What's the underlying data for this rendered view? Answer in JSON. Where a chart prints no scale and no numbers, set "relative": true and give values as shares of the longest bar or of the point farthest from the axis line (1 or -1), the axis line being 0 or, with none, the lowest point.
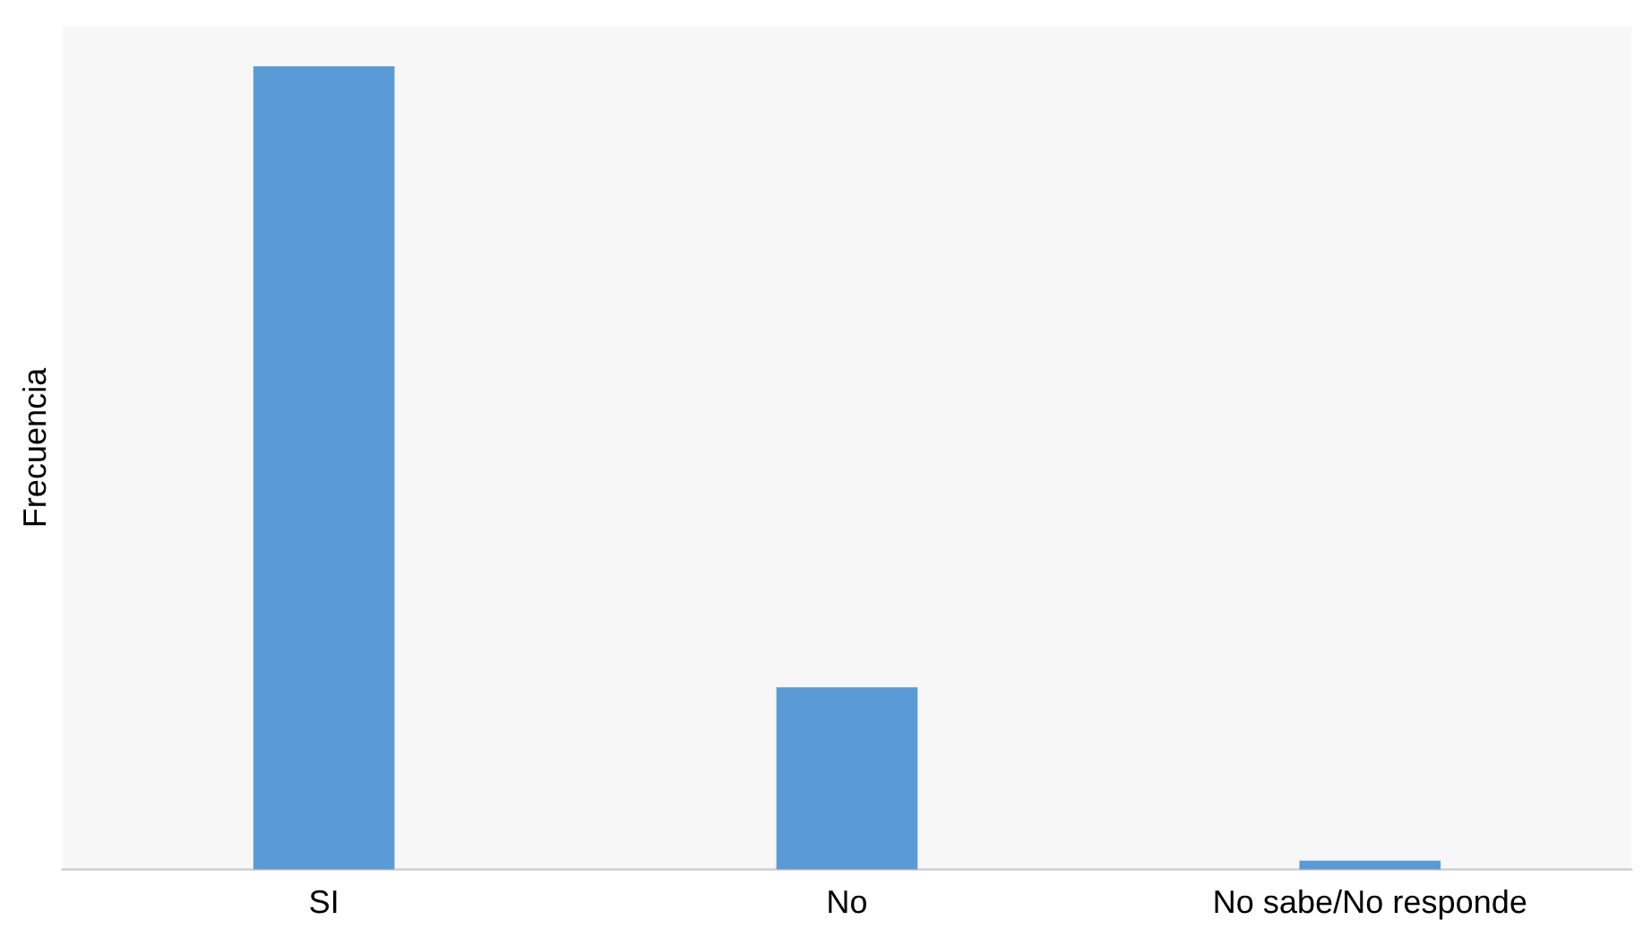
{
  "chart_data": {
    "type": "bar",
    "ylabel": "Frecuencia",
    "categories": [
      "SI",
      "No",
      "No sabe/No responde"
    ],
    "values": [
      1,
      0.227,
      0.011
    ],
    "color": "#5b9bd5",
    "relative": true,
    "legend": false
  }
}
